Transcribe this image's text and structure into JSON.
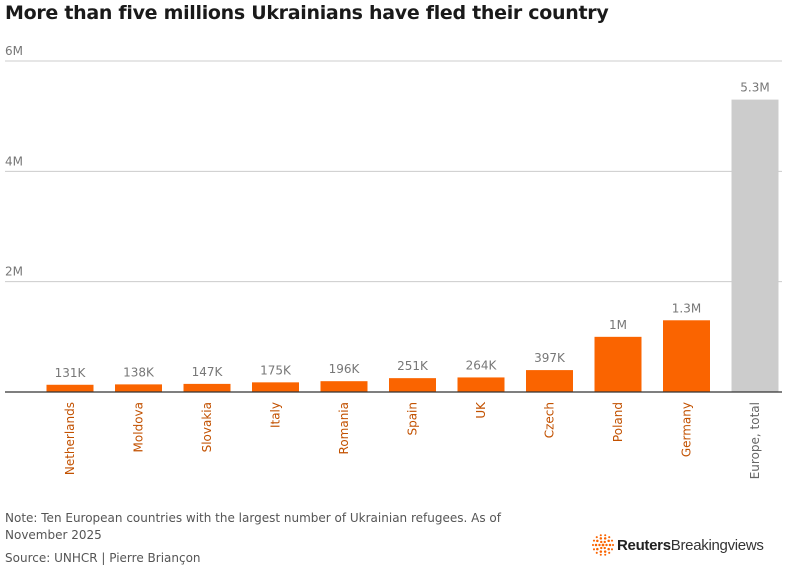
{
  "title": "More than five millions Ukrainians have fled their country",
  "chart_data": {
    "type": "bar",
    "categories": [
      "Netherlands",
      "Moldova",
      "Slovakia",
      "Italy",
      "Romania",
      "Spain",
      "UK",
      "Czech",
      "Poland",
      "Germany",
      "Europe, total"
    ],
    "values": [
      131000,
      138000,
      147000,
      175000,
      196000,
      251000,
      264000,
      397000,
      1000000,
      1300000,
      5300000
    ],
    "data_labels": [
      "131K",
      "138K",
      "147K",
      "175K",
      "196K",
      "251K",
      "264K",
      "397K",
      "1M",
      "1.3M",
      "5.3M"
    ],
    "highlight": [
      false,
      false,
      false,
      false,
      false,
      false,
      false,
      false,
      false,
      false,
      true
    ],
    "ylim": [
      0,
      6000000
    ],
    "yticks": [
      2000000,
      4000000,
      6000000
    ],
    "ytick_labels": [
      "2M",
      "4M",
      "6M"
    ],
    "xlabel": "",
    "ylabel": "",
    "grid": true,
    "colors": {
      "bar": "#fa6400",
      "highlight": "#cccccc",
      "category_label": "#c25100",
      "highlight_label": "#666666",
      "value_label": "#777777",
      "grid": "#cccccc",
      "axis": "#333333"
    }
  },
  "footer": {
    "note": "Note: Ten European countries with the largest number of Ukrainian refugees. As of November 2025",
    "source": "Source: UNHCR | Pierre Briançon"
  },
  "brand": {
    "name_bold": "Reuters",
    "name_rest": "Breakingviews",
    "icon": "reuters-logo-icon",
    "color": "#fa6400"
  }
}
